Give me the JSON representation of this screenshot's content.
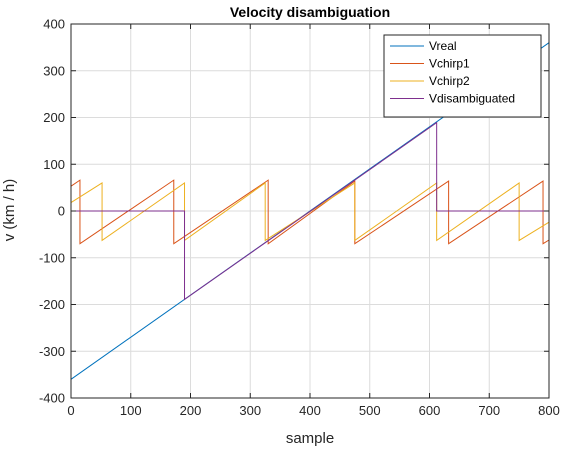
{
  "chart_data": {
    "type": "line",
    "title": "Velocity disambiguation",
    "xlabel": "sample",
    "ylabel": "v (km / h)",
    "xlim": [
      0,
      800
    ],
    "ylim": [
      -400,
      400
    ],
    "xticks": [
      0,
      100,
      200,
      300,
      400,
      500,
      600,
      700,
      800
    ],
    "yticks": [
      -400,
      -300,
      -200,
      -100,
      0,
      100,
      200,
      300,
      400
    ],
    "xtick_labels": [
      "0",
      "100",
      "200",
      "300",
      "400",
      "500",
      "600",
      "700",
      "800"
    ],
    "ytick_labels": [
      "-400",
      "-300",
      "-200",
      "-100",
      "0",
      "100",
      "200",
      "300",
      "400"
    ],
    "grid": true,
    "legend_position": "top-right",
    "series": [
      {
        "name": "Vreal",
        "color": "#0072BD",
        "x": [
          0,
          800
        ],
        "y": [
          -360,
          360
        ]
      },
      {
        "name": "Vchirp1",
        "color": "#D95319",
        "x": [
          0,
          15,
          15,
          172,
          172,
          330,
          330,
          475,
          475,
          632,
          632,
          790,
          790,
          800
        ],
        "y": [
          53,
          66,
          -70,
          66,
          -70,
          66,
          -70,
          64,
          -70,
          64,
          -70,
          64,
          -70,
          -62
        ]
      },
      {
        "name": "Vchirp2",
        "color": "#EDB120",
        "x": [
          0,
          52,
          52,
          190,
          190,
          325,
          325,
          475,
          475,
          612,
          612,
          750,
          750,
          800
        ],
        "y": [
          18,
          60,
          -63,
          60,
          -63,
          60,
          -63,
          60,
          -63,
          60,
          -63,
          60,
          -63,
          -24
        ]
      },
      {
        "name": "Vdisambiguated",
        "color": "#7E2F8E",
        "x": [
          0,
          190,
          190,
          612,
          612,
          800
        ],
        "y": [
          0,
          0,
          -189,
          189,
          0,
          0
        ]
      }
    ]
  }
}
